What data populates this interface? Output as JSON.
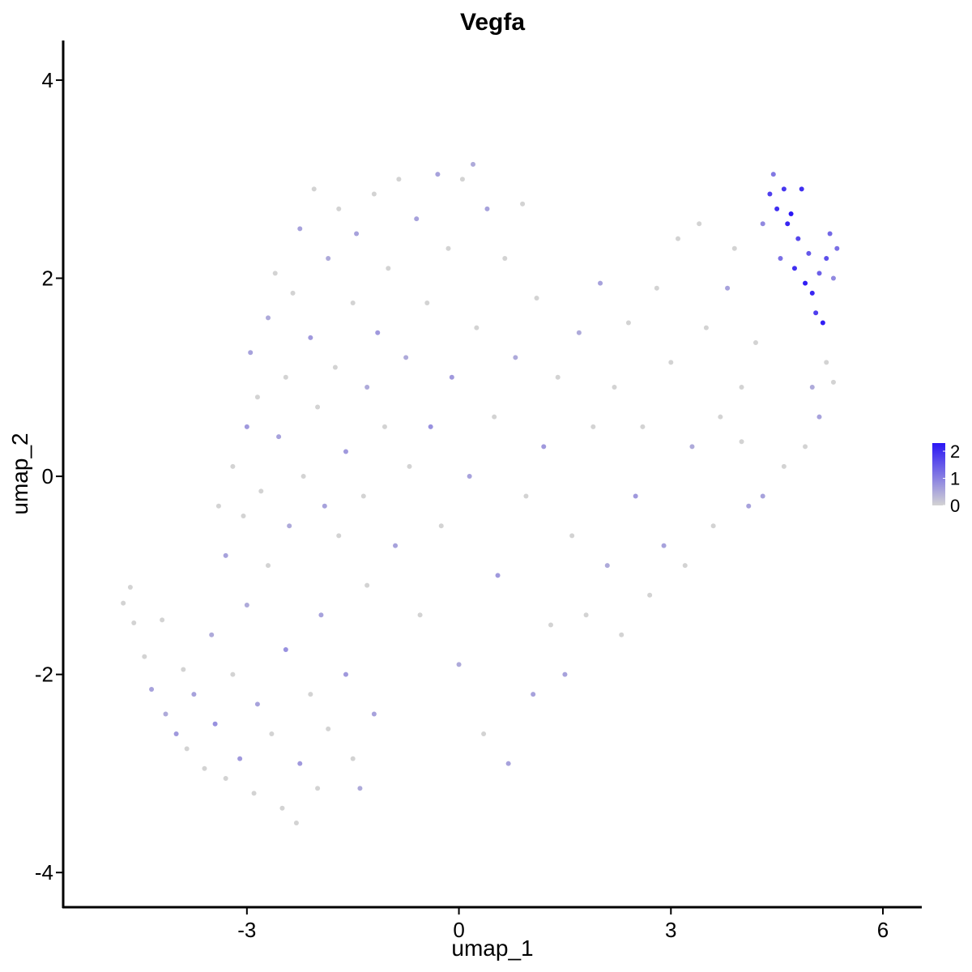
{
  "chart_data": {
    "type": "scatter",
    "title": "Vegfa",
    "xlabel": "umap_1",
    "ylabel": "umap_2",
    "xlim": [
      -5.6,
      6.55
    ],
    "ylim": [
      -4.35,
      4.4
    ],
    "xticks": [
      -3,
      0,
      3,
      6
    ],
    "yticks": [
      -4,
      -2,
      0,
      2,
      4
    ],
    "grid": false,
    "legend": {
      "position": "right",
      "type": "colorbar",
      "labels": [
        "2",
        "1",
        "0"
      ],
      "low_color": "#d3d3d3",
      "high_color": "#2a16f5",
      "range": [
        0,
        2.3
      ]
    },
    "point_colors": {
      "low": "#d3d3d3",
      "high": "#2a16f5"
    },
    "points": [
      {
        "x": -4.75,
        "y": -1.28,
        "v": 0
      },
      {
        "x": -4.65,
        "y": -1.12,
        "v": 0
      },
      {
        "x": -4.6,
        "y": -1.48,
        "v": 0
      },
      {
        "x": -4.45,
        "y": -1.82,
        "v": 0
      },
      {
        "x": -4.35,
        "y": -2.15,
        "v": 0.6
      },
      {
        "x": -4.2,
        "y": -1.45,
        "v": 0
      },
      {
        "x": -4.15,
        "y": -2.4,
        "v": 0.5
      },
      {
        "x": -4.0,
        "y": -2.6,
        "v": 0.7
      },
      {
        "x": -3.9,
        "y": -1.95,
        "v": 0
      },
      {
        "x": -3.85,
        "y": -2.75,
        "v": 0
      },
      {
        "x": -3.75,
        "y": -2.2,
        "v": 0.6
      },
      {
        "x": -3.6,
        "y": -2.95,
        "v": 0
      },
      {
        "x": -3.5,
        "y": -1.6,
        "v": 0.5
      },
      {
        "x": -3.45,
        "y": -2.5,
        "v": 0.8
      },
      {
        "x": -3.3,
        "y": -3.05,
        "v": 0
      },
      {
        "x": -3.2,
        "y": -2.0,
        "v": 0
      },
      {
        "x": -3.1,
        "y": -2.85,
        "v": 0.7
      },
      {
        "x": -3.0,
        "y": -1.3,
        "v": 0.5
      },
      {
        "x": -2.9,
        "y": -3.2,
        "v": 0
      },
      {
        "x": -2.85,
        "y": -2.3,
        "v": 0.6
      },
      {
        "x": -2.7,
        "y": -0.9,
        "v": 0
      },
      {
        "x": -2.65,
        "y": -2.6,
        "v": 0
      },
      {
        "x": -2.5,
        "y": -3.35,
        "v": 0
      },
      {
        "x": -2.45,
        "y": -1.75,
        "v": 0.8
      },
      {
        "x": -2.3,
        "y": -3.5,
        "v": 0
      },
      {
        "x": -2.25,
        "y": -2.9,
        "v": 0.7
      },
      {
        "x": -2.1,
        "y": -2.2,
        "v": 0
      },
      {
        "x": -2.0,
        "y": -3.15,
        "v": 0
      },
      {
        "x": -1.95,
        "y": -1.4,
        "v": 0.6
      },
      {
        "x": -1.85,
        "y": -2.55,
        "v": 0
      },
      {
        "x": -1.7,
        "y": -0.6,
        "v": 0
      },
      {
        "x": -1.6,
        "y": -2.0,
        "v": 0.7
      },
      {
        "x": -1.5,
        "y": -2.85,
        "v": 0
      },
      {
        "x": -1.4,
        "y": -3.15,
        "v": 0.5
      },
      {
        "x": -1.3,
        "y": -1.1,
        "v": 0
      },
      {
        "x": -1.2,
        "y": -2.4,
        "v": 0.6
      },
      {
        "x": -3.4,
        "y": -0.3,
        "v": 0
      },
      {
        "x": -3.3,
        "y": -0.8,
        "v": 0.6
      },
      {
        "x": -3.2,
        "y": 0.1,
        "v": 0
      },
      {
        "x": -3.05,
        "y": -0.4,
        "v": 0
      },
      {
        "x": -3.0,
        "y": 0.5,
        "v": 0.7
      },
      {
        "x": -2.95,
        "y": 1.25,
        "v": 0.6
      },
      {
        "x": -2.85,
        "y": 0.8,
        "v": 0
      },
      {
        "x": -2.8,
        "y": -0.15,
        "v": 0
      },
      {
        "x": -2.7,
        "y": 1.6,
        "v": 0.5
      },
      {
        "x": -2.6,
        "y": 2.05,
        "v": 0
      },
      {
        "x": -2.55,
        "y": 0.4,
        "v": 0.6
      },
      {
        "x": -2.45,
        "y": 1.0,
        "v": 0
      },
      {
        "x": -2.4,
        "y": -0.5,
        "v": 0.5
      },
      {
        "x": -2.35,
        "y": 1.85,
        "v": 0
      },
      {
        "x": -2.25,
        "y": 2.5,
        "v": 0.6
      },
      {
        "x": -2.2,
        "y": 0.0,
        "v": 0
      },
      {
        "x": -2.1,
        "y": 1.4,
        "v": 0.7
      },
      {
        "x": -2.05,
        "y": 2.9,
        "v": 0
      },
      {
        "x": -2.0,
        "y": 0.7,
        "v": 0
      },
      {
        "x": -1.9,
        "y": -0.3,
        "v": 0.6
      },
      {
        "x": -1.85,
        "y": 2.2,
        "v": 0.5
      },
      {
        "x": -1.75,
        "y": 1.1,
        "v": 0
      },
      {
        "x": -1.7,
        "y": 2.7,
        "v": 0
      },
      {
        "x": -1.6,
        "y": 0.25,
        "v": 0.7
      },
      {
        "x": -1.5,
        "y": 1.75,
        "v": 0
      },
      {
        "x": -1.45,
        "y": 2.45,
        "v": 0.6
      },
      {
        "x": -1.35,
        "y": -0.2,
        "v": 0
      },
      {
        "x": -1.3,
        "y": 0.9,
        "v": 0.5
      },
      {
        "x": -1.2,
        "y": 2.85,
        "v": 0
      },
      {
        "x": -1.15,
        "y": 1.45,
        "v": 0.7
      },
      {
        "x": -1.05,
        "y": 0.5,
        "v": 0
      },
      {
        "x": -1.0,
        "y": 2.1,
        "v": 0
      },
      {
        "x": -0.9,
        "y": -0.7,
        "v": 0.6
      },
      {
        "x": -0.85,
        "y": 3.0,
        "v": 0
      },
      {
        "x": -0.75,
        "y": 1.2,
        "v": 0.5
      },
      {
        "x": -0.7,
        "y": 0.1,
        "v": 0
      },
      {
        "x": -0.6,
        "y": 2.6,
        "v": 0.6
      },
      {
        "x": -0.55,
        "y": -1.4,
        "v": 0
      },
      {
        "x": -0.45,
        "y": 1.75,
        "v": 0
      },
      {
        "x": -0.4,
        "y": 0.5,
        "v": 0.8
      },
      {
        "x": -0.3,
        "y": 3.05,
        "v": 0.6
      },
      {
        "x": -0.25,
        "y": -0.5,
        "v": 0
      },
      {
        "x": -0.15,
        "y": 2.3,
        "v": 0
      },
      {
        "x": -0.1,
        "y": 1.0,
        "v": 0.7
      },
      {
        "x": 0.0,
        "y": -1.9,
        "v": 0.5
      },
      {
        "x": 0.05,
        "y": 3.0,
        "v": 0
      },
      {
        "x": 0.15,
        "y": 0.0,
        "v": 0.6
      },
      {
        "x": 0.2,
        "y": 3.15,
        "v": 0.5
      },
      {
        "x": 0.25,
        "y": 1.5,
        "v": 0
      },
      {
        "x": 0.35,
        "y": -2.6,
        "v": 0
      },
      {
        "x": 0.4,
        "y": 2.7,
        "v": 0.6
      },
      {
        "x": 0.5,
        "y": 0.6,
        "v": 0
      },
      {
        "x": 0.55,
        "y": -1.0,
        "v": 0.7
      },
      {
        "x": 0.65,
        "y": 2.2,
        "v": 0
      },
      {
        "x": 0.7,
        "y": -2.9,
        "v": 0.6
      },
      {
        "x": 0.8,
        "y": 1.2,
        "v": 0.5
      },
      {
        "x": 0.9,
        "y": 2.75,
        "v": 0
      },
      {
        "x": 0.95,
        "y": -0.2,
        "v": 0
      },
      {
        "x": 1.05,
        "y": -2.2,
        "v": 0.6
      },
      {
        "x": 1.1,
        "y": 1.8,
        "v": 0
      },
      {
        "x": 1.2,
        "y": 0.3,
        "v": 0.7
      },
      {
        "x": 1.3,
        "y": -1.5,
        "v": 0
      },
      {
        "x": 1.4,
        "y": 1.0,
        "v": 0
      },
      {
        "x": 1.5,
        "y": -2.0,
        "v": 0.6
      },
      {
        "x": 1.6,
        "y": -0.6,
        "v": 0
      },
      {
        "x": 1.7,
        "y": 1.45,
        "v": 0.5
      },
      {
        "x": 1.8,
        "y": -1.4,
        "v": 0
      },
      {
        "x": 1.9,
        "y": 0.5,
        "v": 0
      },
      {
        "x": 2.0,
        "y": 1.95,
        "v": 0.6
      },
      {
        "x": 2.1,
        "y": -0.9,
        "v": 0.5
      },
      {
        "x": 2.2,
        "y": 0.9,
        "v": 0
      },
      {
        "x": 2.3,
        "y": -1.6,
        "v": 0
      },
      {
        "x": 2.4,
        "y": 1.55,
        "v": 0
      },
      {
        "x": 2.5,
        "y": -0.2,
        "v": 0.7
      },
      {
        "x": 2.6,
        "y": 0.5,
        "v": 0
      },
      {
        "x": 2.7,
        "y": -1.2,
        "v": 0
      },
      {
        "x": 2.8,
        "y": 1.9,
        "v": 0
      },
      {
        "x": 2.9,
        "y": -0.7,
        "v": 0.6
      },
      {
        "x": 3.0,
        "y": 1.15,
        "v": 0
      },
      {
        "x": 3.1,
        "y": 2.4,
        "v": 0
      },
      {
        "x": 3.2,
        "y": -0.9,
        "v": 0
      },
      {
        "x": 3.3,
        "y": 0.3,
        "v": 0.5
      },
      {
        "x": 3.4,
        "y": 2.55,
        "v": 0
      },
      {
        "x": 3.5,
        "y": 1.5,
        "v": 0
      },
      {
        "x": 3.6,
        "y": -0.5,
        "v": 0
      },
      {
        "x": 3.7,
        "y": 0.6,
        "v": 0
      },
      {
        "x": 3.8,
        "y": 1.9,
        "v": 0.6
      },
      {
        "x": 3.9,
        "y": 2.3,
        "v": 0
      },
      {
        "x": 4.0,
        "y": 0.9,
        "v": 0
      },
      {
        "x": 4.1,
        "y": -0.3,
        "v": 0.6
      },
      {
        "x": 4.2,
        "y": 1.35,
        "v": 0
      },
      {
        "x": 4.3,
        "y": 2.55,
        "v": 0.9
      },
      {
        "x": 4.4,
        "y": 2.85,
        "v": 1.8
      },
      {
        "x": 4.45,
        "y": 3.05,
        "v": 1.1
      },
      {
        "x": 4.5,
        "y": 2.7,
        "v": 2.0
      },
      {
        "x": 4.55,
        "y": 2.2,
        "v": 1.2
      },
      {
        "x": 4.6,
        "y": 2.9,
        "v": 1.9
      },
      {
        "x": 4.65,
        "y": 2.55,
        "v": 2.1
      },
      {
        "x": 4.7,
        "y": 2.65,
        "v": 2.3
      },
      {
        "x": 4.75,
        "y": 2.1,
        "v": 2.0
      },
      {
        "x": 4.8,
        "y": 2.4,
        "v": 1.7
      },
      {
        "x": 4.85,
        "y": 2.9,
        "v": 2.0
      },
      {
        "x": 4.9,
        "y": 1.95,
        "v": 2.2
      },
      {
        "x": 4.95,
        "y": 2.25,
        "v": 1.5
      },
      {
        "x": 5.0,
        "y": 1.85,
        "v": 2.1
      },
      {
        "x": 5.05,
        "y": 1.65,
        "v": 1.8
      },
      {
        "x": 5.1,
        "y": 2.05,
        "v": 1.4
      },
      {
        "x": 5.15,
        "y": 1.55,
        "v": 2.2
      },
      {
        "x": 5.2,
        "y": 2.2,
        "v": 1.6
      },
      {
        "x": 5.25,
        "y": 2.45,
        "v": 1.3
      },
      {
        "x": 5.3,
        "y": 2.0,
        "v": 0.9
      },
      {
        "x": 5.35,
        "y": 2.3,
        "v": 1.2
      },
      {
        "x": 5.0,
        "y": 0.9,
        "v": 0.5
      },
      {
        "x": 5.1,
        "y": 0.6,
        "v": 0.6
      },
      {
        "x": 5.2,
        "y": 1.15,
        "v": 0
      },
      {
        "x": 5.3,
        "y": 0.95,
        "v": 0
      },
      {
        "x": 4.9,
        "y": 0.3,
        "v": 0
      },
      {
        "x": 4.6,
        "y": 0.1,
        "v": 0
      },
      {
        "x": 4.3,
        "y": -0.2,
        "v": 0.6
      },
      {
        "x": 4.0,
        "y": 0.35,
        "v": 0
      }
    ]
  }
}
